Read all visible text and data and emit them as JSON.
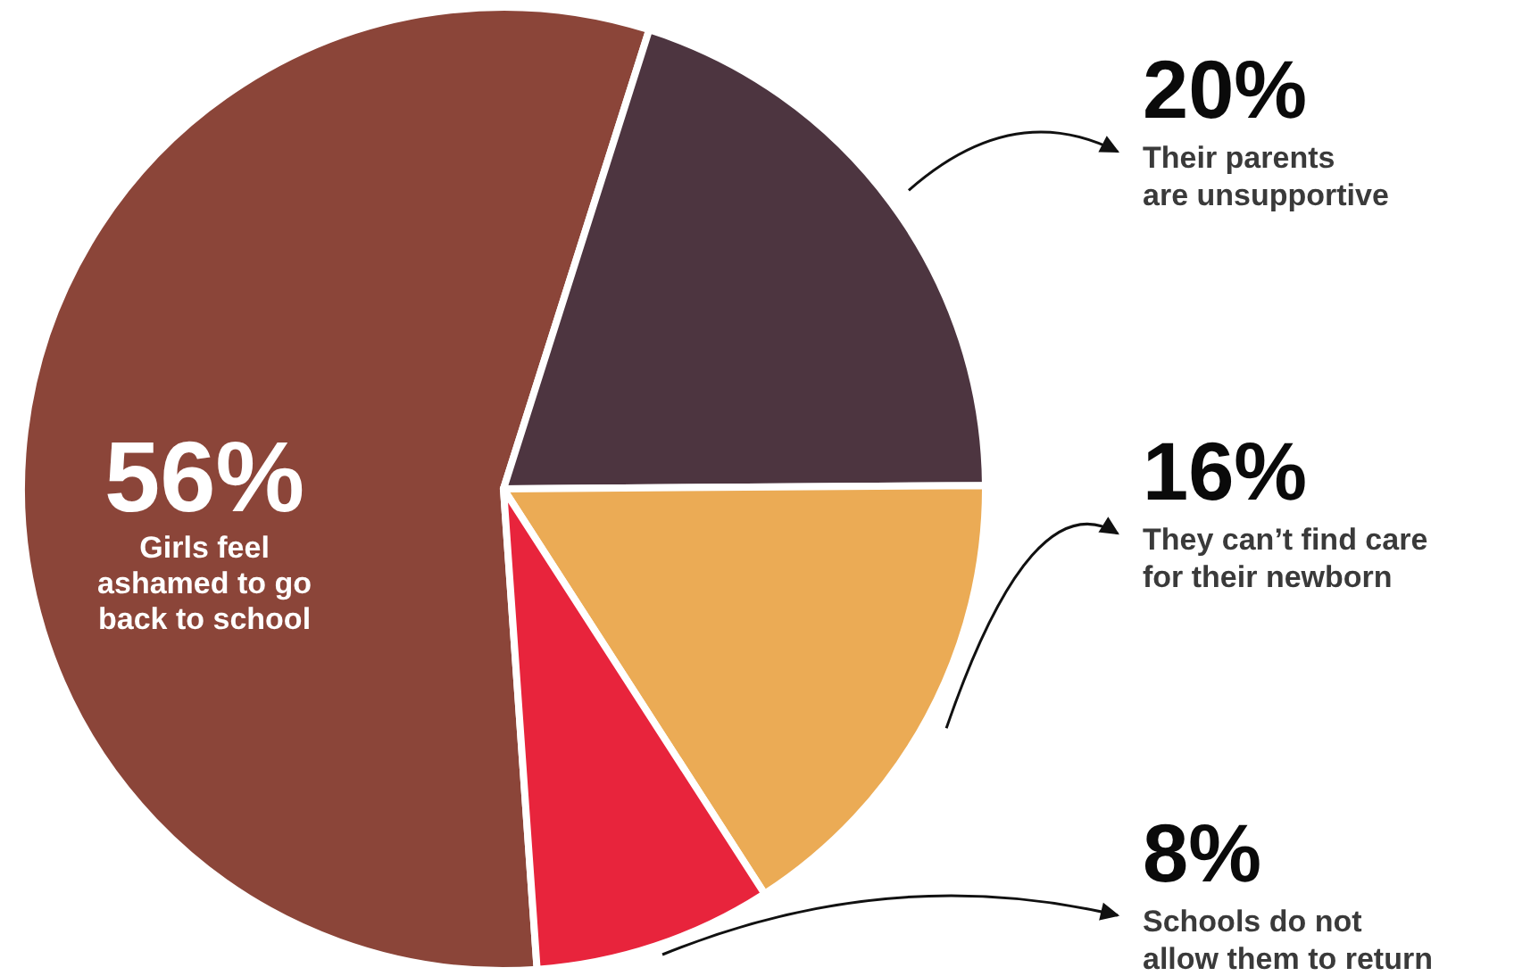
{
  "chart_data": {
    "type": "pie",
    "categories": [
      "Girls feel ashamed to go back to school",
      "Their parents are unsupportive",
      "They can’t find care for their newborn",
      "Schools do not allow them to return"
    ],
    "values": [
      56,
      20,
      16,
      8
    ],
    "colors": [
      "#8b4539",
      "#4d3540",
      "#ebab55",
      "#e8243c"
    ],
    "value_labels": [
      "56%",
      "20%",
      "16%",
      "8%"
    ]
  }
}
